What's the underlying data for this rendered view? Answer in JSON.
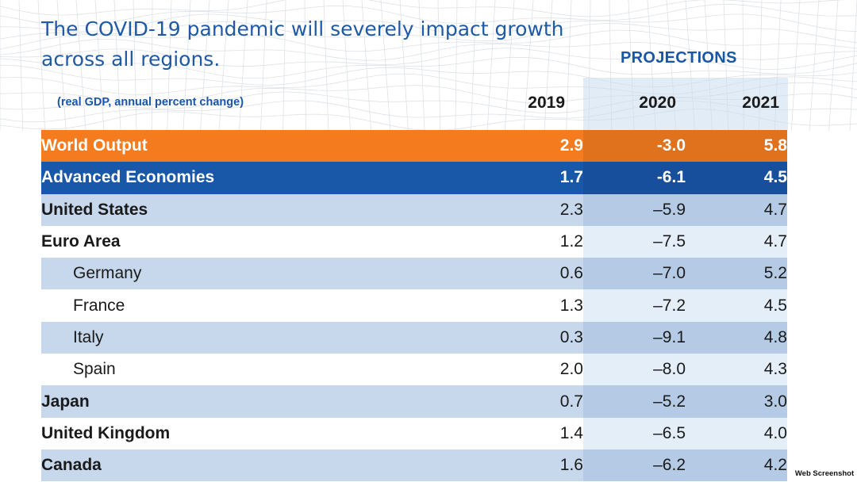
{
  "title": "The COVID-19 pandemic will severely impact growth across all regions.",
  "projections_label": "PROJECTIONS",
  "unit_note": "(real GDP, annual percent change)",
  "watermark": "Web Screenshot",
  "colors": {
    "title_blue": "#1f5aa6",
    "world_orange": "#f47b1e",
    "advanced_blue": "#1957a9",
    "row_light_blue": "#c7d8ec",
    "projection_shade": "#e4eef8"
  },
  "chart_data": {
    "type": "table",
    "title": "The COVID-19 pandemic will severely impact growth across all regions.",
    "subtitle": "(real GDP, annual percent change)",
    "columns": [
      "2019",
      "2020",
      "2021"
    ],
    "rows": [
      {
        "name": "World Output",
        "values": [
          "2.9",
          "-3.0",
          "5.8"
        ],
        "style": "world"
      },
      {
        "name": "Advanced Economies",
        "values": [
          "1.7",
          "-6.1",
          "4.5"
        ],
        "style": "advanced"
      },
      {
        "name": "United States",
        "values": [
          "2.3",
          "–5.9",
          "4.7"
        ],
        "style": "bold"
      },
      {
        "name": "Euro Area",
        "values": [
          "1.2",
          "–7.5",
          "4.7"
        ],
        "style": "bold"
      },
      {
        "name": "Germany",
        "values": [
          "0.6",
          "–7.0",
          "5.2"
        ],
        "style": "sub"
      },
      {
        "name": "France",
        "values": [
          "1.3",
          "–7.2",
          "4.5"
        ],
        "style": "sub"
      },
      {
        "name": "Italy",
        "values": [
          "0.3",
          "–9.1",
          "4.8"
        ],
        "style": "sub"
      },
      {
        "name": "Spain",
        "values": [
          "2.0",
          "–8.0",
          "4.3"
        ],
        "style": "sub"
      },
      {
        "name": "Japan",
        "values": [
          "0.7",
          "–5.2",
          "3.0"
        ],
        "style": "bold"
      },
      {
        "name": "United Kingdom",
        "values": [
          "1.4",
          "–6.5",
          "4.0"
        ],
        "style": "bold"
      },
      {
        "name": "Canada",
        "values": [
          "1.6",
          "–6.2",
          "4.2"
        ],
        "style": "bold"
      }
    ]
  }
}
